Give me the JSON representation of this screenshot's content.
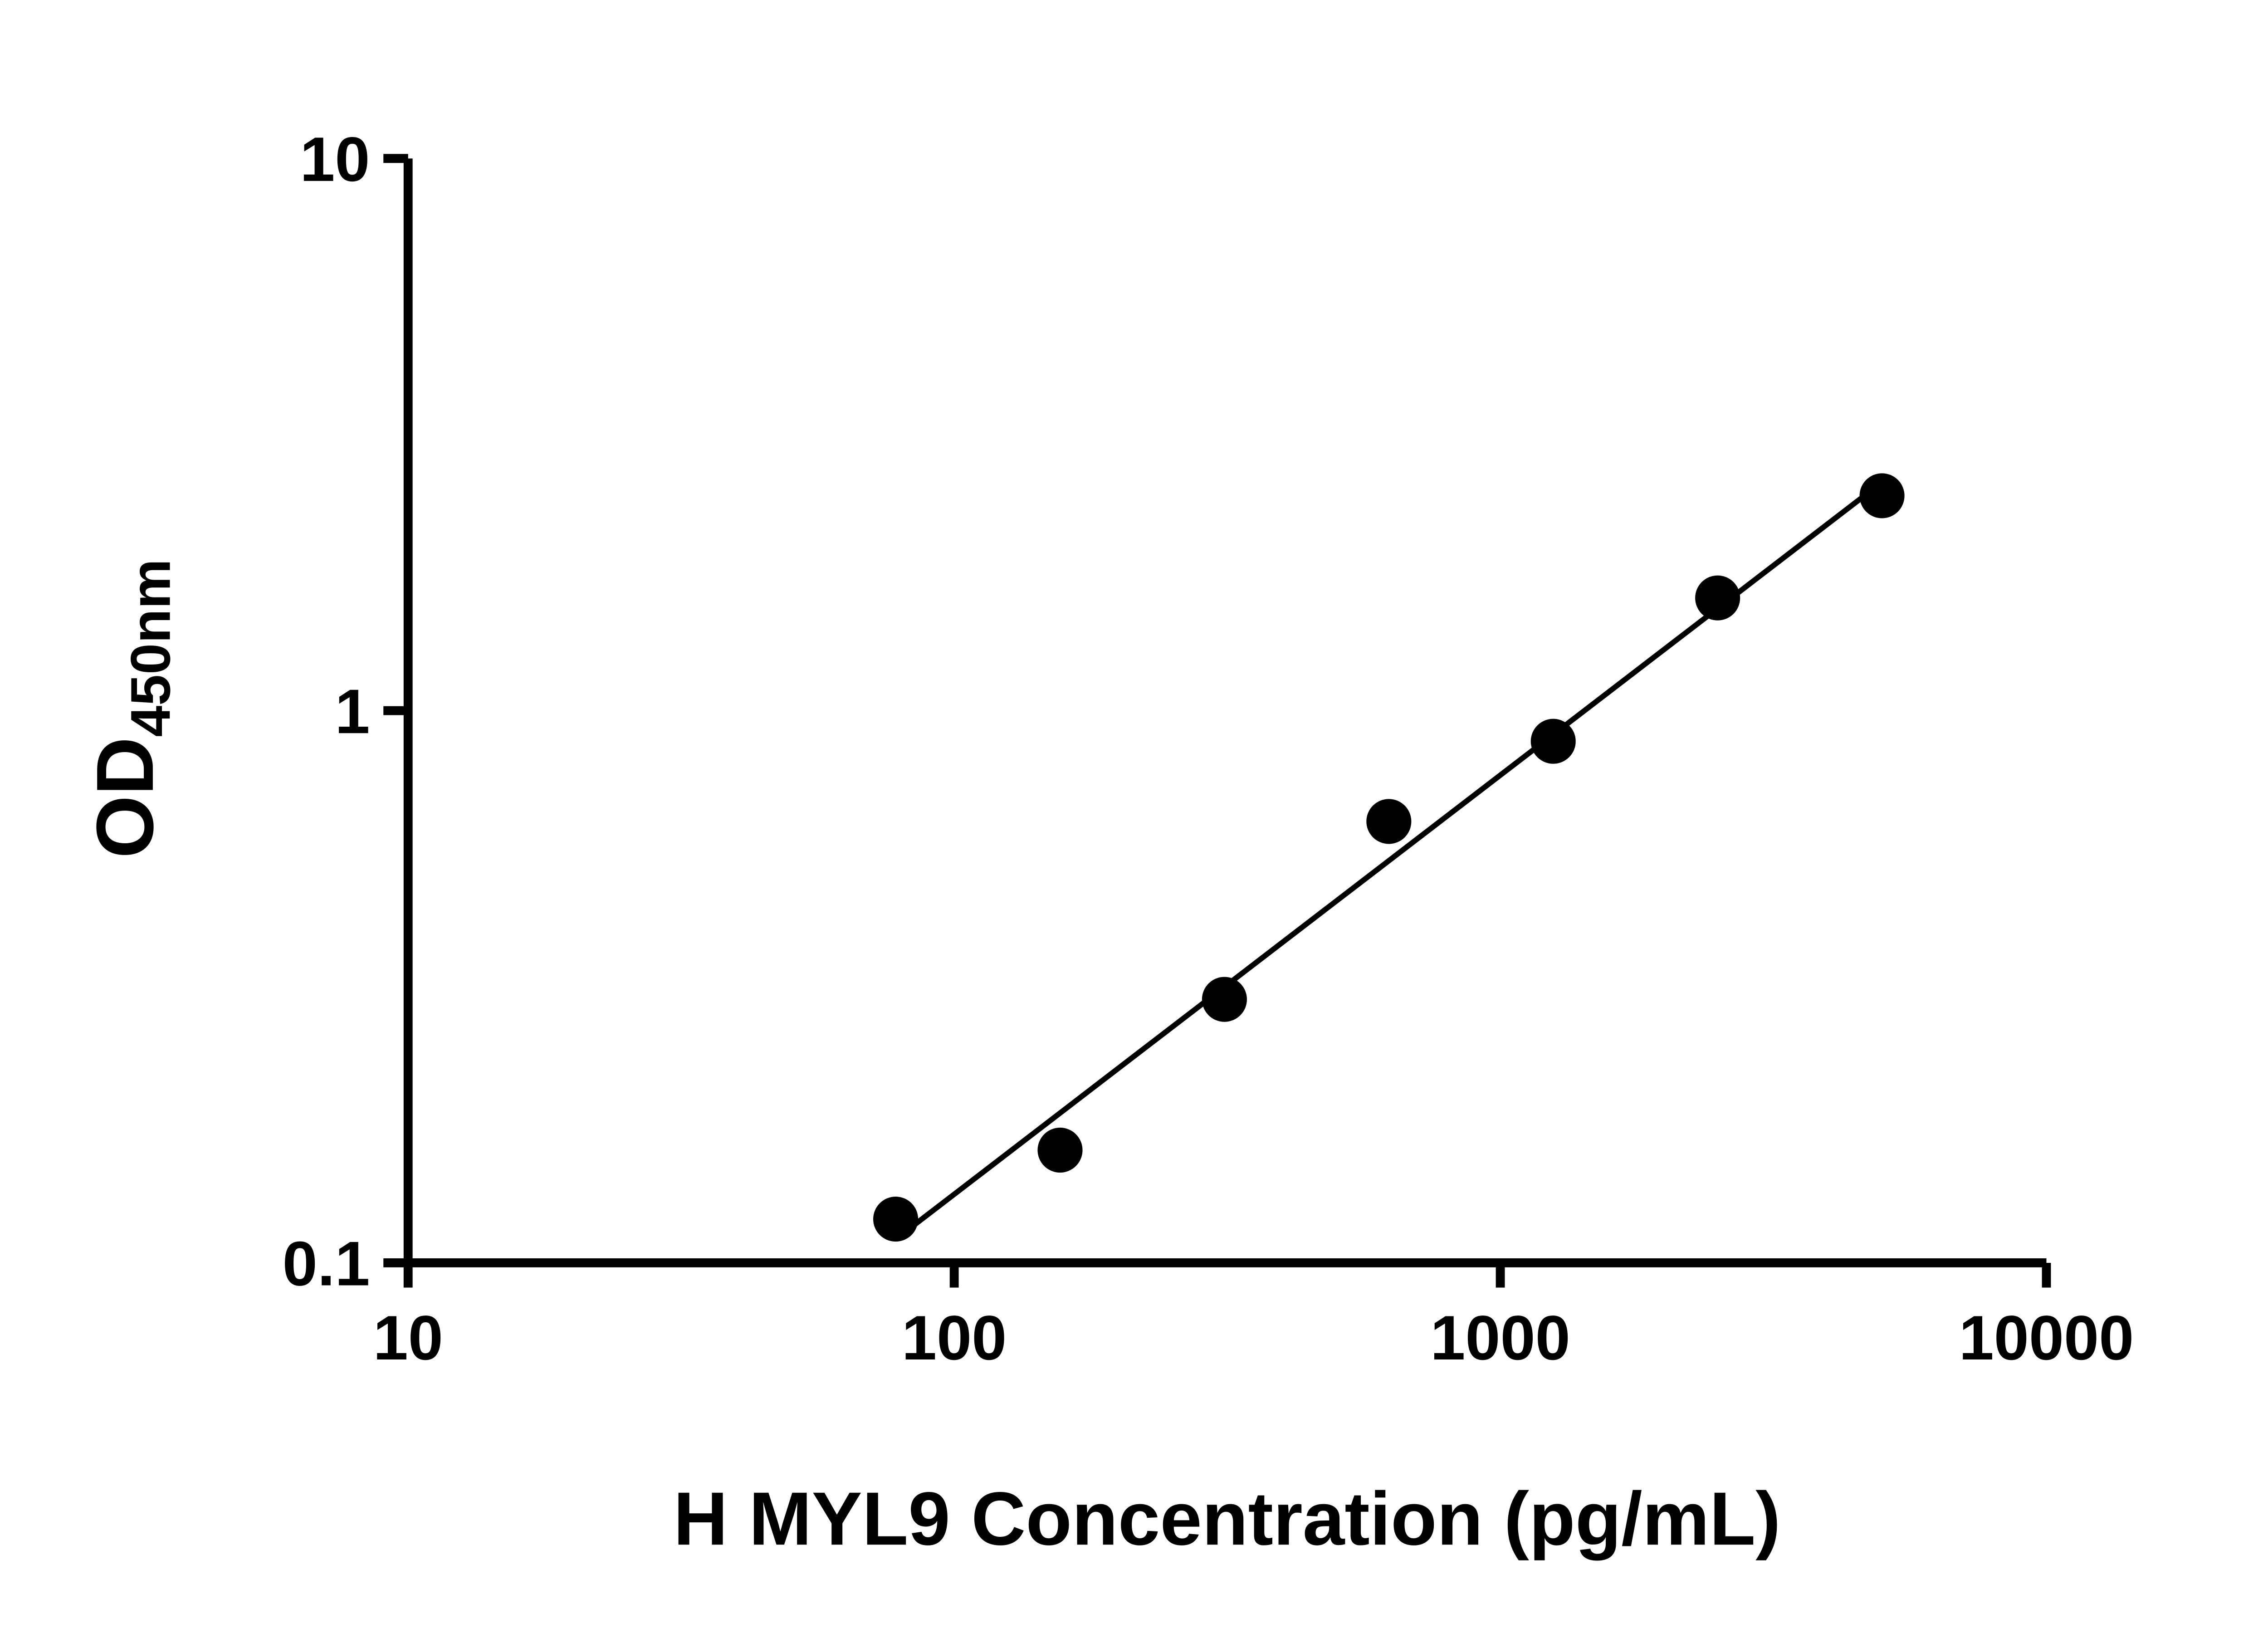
{
  "chart_data": {
    "type": "scatter",
    "title": "",
    "xlabel": "H MYL9 Concentration (pg/mL)",
    "ylabel_main": "OD",
    "ylabel_sub": "450nm",
    "x_scale": "log",
    "y_scale": "log",
    "xlim": [
      10,
      10000
    ],
    "ylim": [
      0.1,
      10
    ],
    "x_ticks": [
      10,
      100,
      1000,
      10000
    ],
    "x_tick_labels": [
      "10",
      "100",
      "1000",
      "10000"
    ],
    "y_ticks": [
      0.1,
      1,
      10
    ],
    "y_tick_labels": [
      "0.1",
      "1",
      "10"
    ],
    "grid": false,
    "legend": null,
    "marker_color": "#000000",
    "line_color": "#000000",
    "points": [
      {
        "x": 78.125,
        "y": 0.12
      },
      {
        "x": 156.25,
        "y": 0.16
      },
      {
        "x": 312.5,
        "y": 0.3
      },
      {
        "x": 625,
        "y": 0.63
      },
      {
        "x": 1250,
        "y": 0.88
      },
      {
        "x": 2500,
        "y": 1.6
      },
      {
        "x": 5000,
        "y": 2.45
      }
    ],
    "trendline": {
      "fit": "log-log-linear",
      "x_start": 82,
      "x_end": 5060
    }
  }
}
